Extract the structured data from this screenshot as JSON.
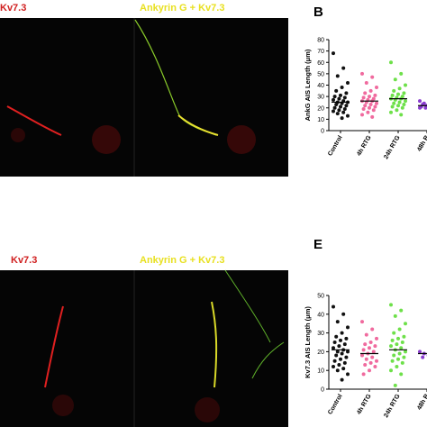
{
  "figure": {
    "top_left_label": "Kv7.3",
    "top_right_label": "Ankyrin G + Kv7.3",
    "bottom_left_label": "Kv7.3",
    "bottom_right_label": "Ankyrin G + Kv7.3"
  },
  "chart_data": [
    {
      "type": "strip",
      "panel_label": "B",
      "y_label": "AnkG AIS Length (μm)",
      "categories": [
        "Control",
        "4h RTG",
        "24h RTG",
        "48h R"
      ],
      "colors": [
        "#111111",
        "#f06a9e",
        "#6ee04a",
        "#8a3ccf"
      ],
      "values": [
        [
          68,
          55,
          48,
          42,
          38,
          35,
          33,
          31,
          30,
          29,
          28,
          27,
          26,
          25,
          25,
          24,
          23,
          22,
          21,
          20,
          19,
          18,
          17,
          16,
          15,
          13,
          11
        ],
        [
          50,
          47,
          42,
          38,
          35,
          33,
          31,
          30,
          29,
          28,
          27,
          26,
          26,
          25,
          24,
          23,
          22,
          21,
          20,
          19,
          18,
          16,
          14,
          12
        ],
        [
          60,
          50,
          45,
          40,
          37,
          35,
          33,
          32,
          31,
          30,
          29,
          28,
          28,
          27,
          26,
          25,
          24,
          23,
          22,
          21,
          20,
          18,
          16,
          14
        ],
        [
          26,
          25,
          24,
          24,
          23,
          23,
          22,
          22,
          21,
          21,
          20,
          20,
          19
        ]
      ],
      "means": [
        25,
        26,
        28,
        22
      ],
      "ylim": [
        0,
        80
      ],
      "yticks": [
        0,
        10,
        20,
        30,
        40,
        50,
        60,
        70,
        80
      ]
    },
    {
      "type": "strip",
      "panel_label": "E",
      "y_label": "Kv7.3 AIS Length (μm)",
      "categories": [
        "Control",
        "4h RTG",
        "24h RTG",
        "48h R"
      ],
      "colors": [
        "#111111",
        "#f06a9e",
        "#6ee04a",
        "#8a3ccf"
      ],
      "values": [
        [
          44,
          40,
          36,
          33,
          30,
          28,
          27,
          26,
          25,
          24,
          23,
          22,
          21,
          20,
          20,
          19,
          18,
          17,
          16,
          15,
          14,
          13,
          12,
          11,
          10,
          8,
          5
        ],
        [
          36,
          32,
          29,
          27,
          25,
          24,
          23,
          22,
          21,
          20,
          19,
          18,
          17,
          16,
          15,
          14,
          13,
          12,
          10,
          8
        ],
        [
          45,
          42,
          39,
          35,
          32,
          30,
          28,
          27,
          26,
          25,
          24,
          23,
          22,
          21,
          20,
          19,
          18,
          17,
          16,
          15,
          14,
          12,
          10,
          8,
          2
        ],
        [
          20,
          19,
          19,
          18,
          18,
          17
        ]
      ],
      "means": [
        21,
        19,
        21,
        19
      ],
      "ylim": [
        0,
        50
      ],
      "yticks": [
        0,
        10,
        20,
        30,
        40,
        50
      ]
    }
  ]
}
